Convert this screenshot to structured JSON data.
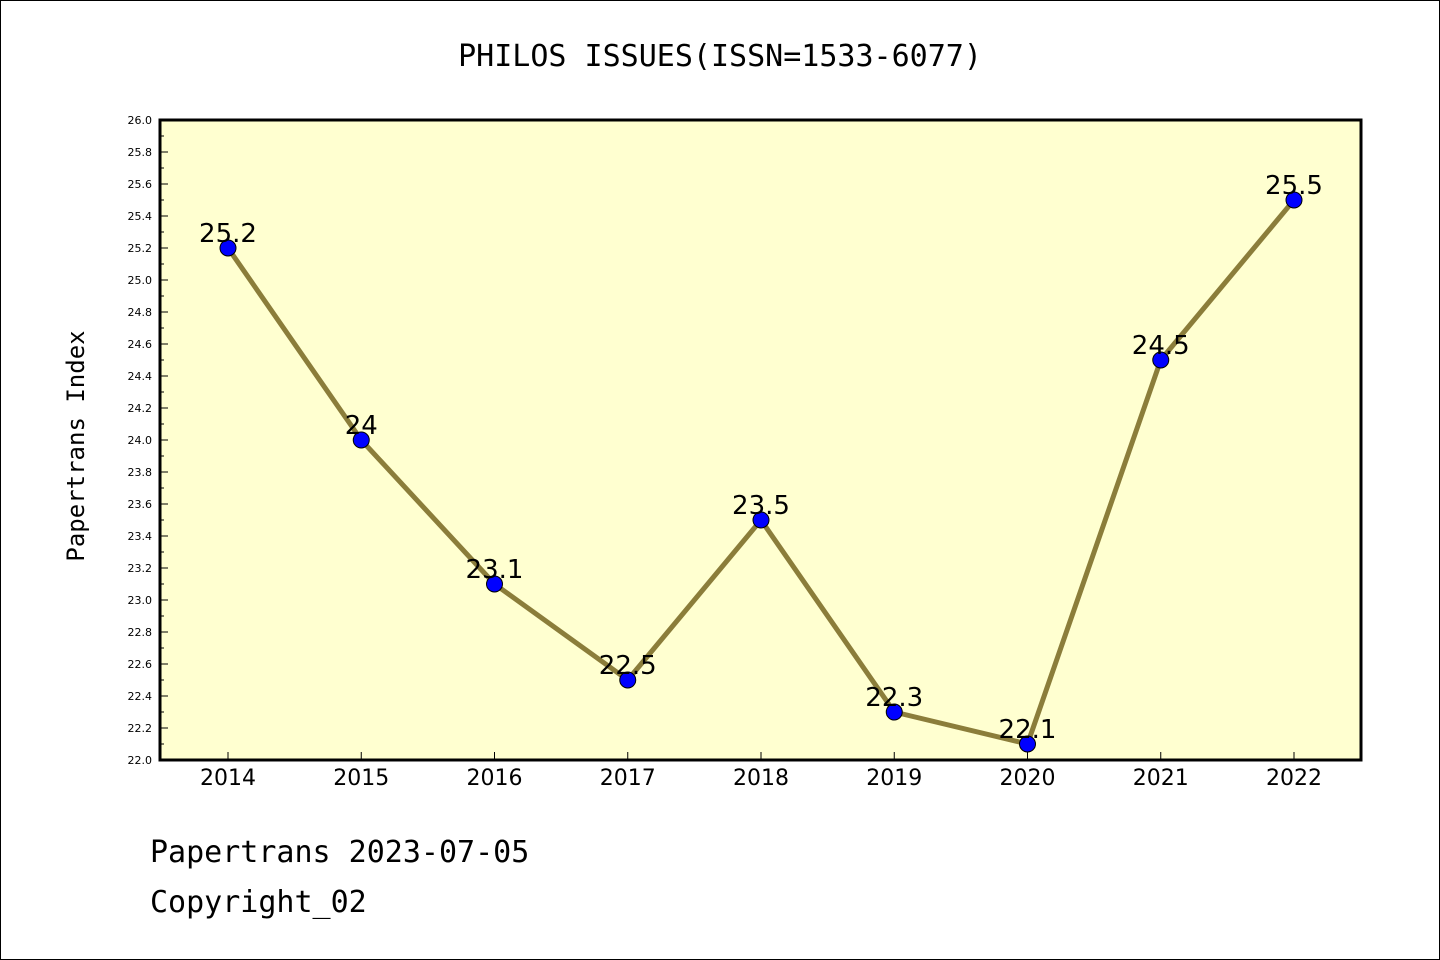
{
  "chart_data": {
    "type": "line",
    "title": "PHILOS ISSUES(ISSN=1533-6077)",
    "xlabel": "",
    "ylabel": "Papertrans Index",
    "categories": [
      "2014",
      "2015",
      "2016",
      "2017",
      "2018",
      "2019",
      "2020",
      "2021",
      "2022"
    ],
    "series": [
      {
        "values": [
          25.2,
          24.0,
          23.1,
          22.5,
          23.5,
          22.3,
          22.1,
          24.5,
          25.5
        ]
      }
    ],
    "data_labels": [
      "25.2",
      "24",
      "23.1",
      "22.5",
      "23.5",
      "22.3",
      "22.1",
      "24.5",
      "25.5"
    ],
    "ylim": [
      22.0,
      26.0
    ],
    "yticks": [
      "22.0",
      "22.2",
      "22.4",
      "22.6",
      "22.8",
      "23.0",
      "23.2",
      "23.4",
      "23.6",
      "23.8",
      "24.0",
      "24.2",
      "24.4",
      "24.6",
      "24.8",
      "25.0",
      "25.2",
      "25.4",
      "25.6",
      "25.8",
      "26.0"
    ],
    "grid": false,
    "colors": {
      "plot_background": "#ffffd0",
      "line": "#8b7d3a",
      "marker": "#0000ff"
    }
  },
  "footer": {
    "line1": "Papertrans 2023-07-05",
    "line2": "Copyright_02"
  }
}
